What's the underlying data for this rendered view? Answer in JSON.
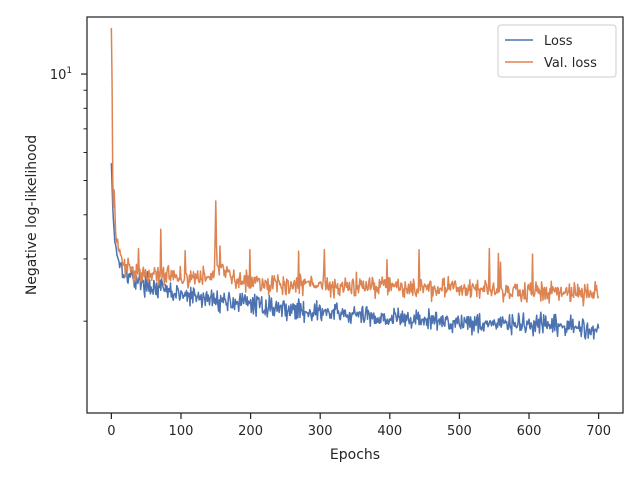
{
  "chart_data": {
    "type": "line",
    "xlabel": "Epochs",
    "ylabel": "Negative log-likelihood",
    "xlim": [
      -35,
      735
    ],
    "ylim": [
      1.1,
      14.5
    ],
    "yscale": "log",
    "x_ticks": [
      0,
      100,
      200,
      300,
      400,
      500,
      600,
      700
    ],
    "y_ticks": [
      {
        "value": 10,
        "base": "10",
        "exp": "1"
      }
    ],
    "grid": false,
    "legend_position": "top-right",
    "colors": {
      "Loss": "#4c72b0",
      "Val. loss": "#dd8452",
      "axes": "#262626"
    },
    "series": [
      {
        "name": "Loss",
        "x": [
          0,
          2,
          4,
          6,
          10,
          15,
          20,
          30,
          40,
          50,
          60,
          75,
          90,
          100,
          125,
          150,
          175,
          200,
          225,
          250,
          275,
          300,
          325,
          350,
          375,
          400,
          425,
          450,
          475,
          500,
          525,
          550,
          575,
          600,
          625,
          650,
          675,
          700
        ],
        "values": [
          5.6,
          4.2,
          3.6,
          3.3,
          3.0,
          2.85,
          2.75,
          2.65,
          2.6,
          2.55,
          2.5,
          2.45,
          2.4,
          2.37,
          2.33,
          2.3,
          2.27,
          2.24,
          2.2,
          2.17,
          2.14,
          2.12,
          2.1,
          2.08,
          2.06,
          2.04,
          2.03,
          2.01,
          2.0,
          1.99,
          1.98,
          1.97,
          1.96,
          1.95,
          1.94,
          1.93,
          1.92,
          1.9
        ]
      },
      {
        "name": "Val. loss",
        "x": [
          0,
          1,
          2,
          3,
          4,
          6,
          10,
          15,
          20,
          30,
          40,
          50,
          75,
          100,
          125,
          148,
          150,
          152,
          175,
          200,
          225,
          250,
          275,
          300,
          325,
          350,
          375,
          400,
          425,
          450,
          475,
          490,
          500,
          525,
          550,
          575,
          600,
          625,
          650,
          675,
          700
        ],
        "values": [
          13.5,
          9.5,
          5.0,
          4.2,
          4.7,
          3.6,
          3.2,
          2.95,
          2.85,
          2.8,
          2.75,
          2.72,
          2.7,
          2.68,
          2.65,
          2.7,
          4.1,
          2.9,
          2.62,
          2.6,
          2.58,
          2.56,
          2.55,
          2.54,
          2.53,
          2.52,
          2.51,
          2.5,
          2.49,
          2.48,
          2.47,
          2.5,
          2.47,
          2.46,
          2.45,
          2.44,
          2.43,
          2.42,
          2.42,
          2.41,
          2.4
        ]
      }
    ]
  }
}
